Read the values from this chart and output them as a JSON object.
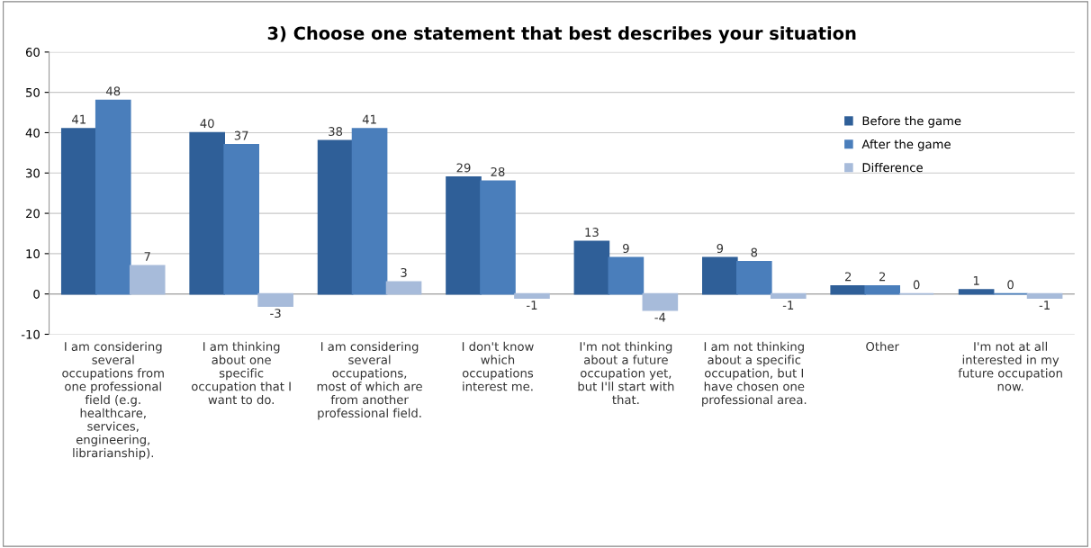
{
  "chart_data": {
    "type": "bar",
    "title": "3) Choose one statement that best describes your situation",
    "categories": [
      "I am considering\nseveral\noccupations from\none professional\nfield (e.g.\nhealthcare,\nservices,\nengineering,\nlibrarianship).",
      "I am thinking\nabout one\nspecific\noccupation that I\nwant to do.",
      "I am considering\nseveral\noccupations,\nmost of which are\nfrom another\nprofessional field.",
      "I don't know\nwhich\noccupations\ninterest me.",
      "I'm not thinking\nabout a future\noccupation yet,\nbut I'll start with\nthat.",
      "I am not thinking\nabout a specific\noccupation, but I\nhave chosen one\nprofessional area.",
      "Other",
      "I'm not at all\ninterested in my\nfuture occupation\nnow."
    ],
    "series": [
      {
        "name": "Before the game",
        "color": "#2f5f98",
        "values": [
          41,
          40,
          38,
          29,
          13,
          9,
          2,
          1
        ]
      },
      {
        "name": "After the game",
        "color": "#4a7ebb",
        "values": [
          48,
          37,
          41,
          28,
          9,
          8,
          2,
          0
        ]
      },
      {
        "name": "Difference",
        "color": "#a7bbda",
        "values": [
          7,
          -3,
          3,
          -1,
          -4,
          -1,
          0,
          -1
        ]
      }
    ],
    "ylim": [
      -10,
      60
    ],
    "yticks": [
      -10,
      0,
      10,
      20,
      30,
      40,
      50,
      60
    ],
    "grid": "y",
    "legend": "right",
    "data_labels": true
  }
}
